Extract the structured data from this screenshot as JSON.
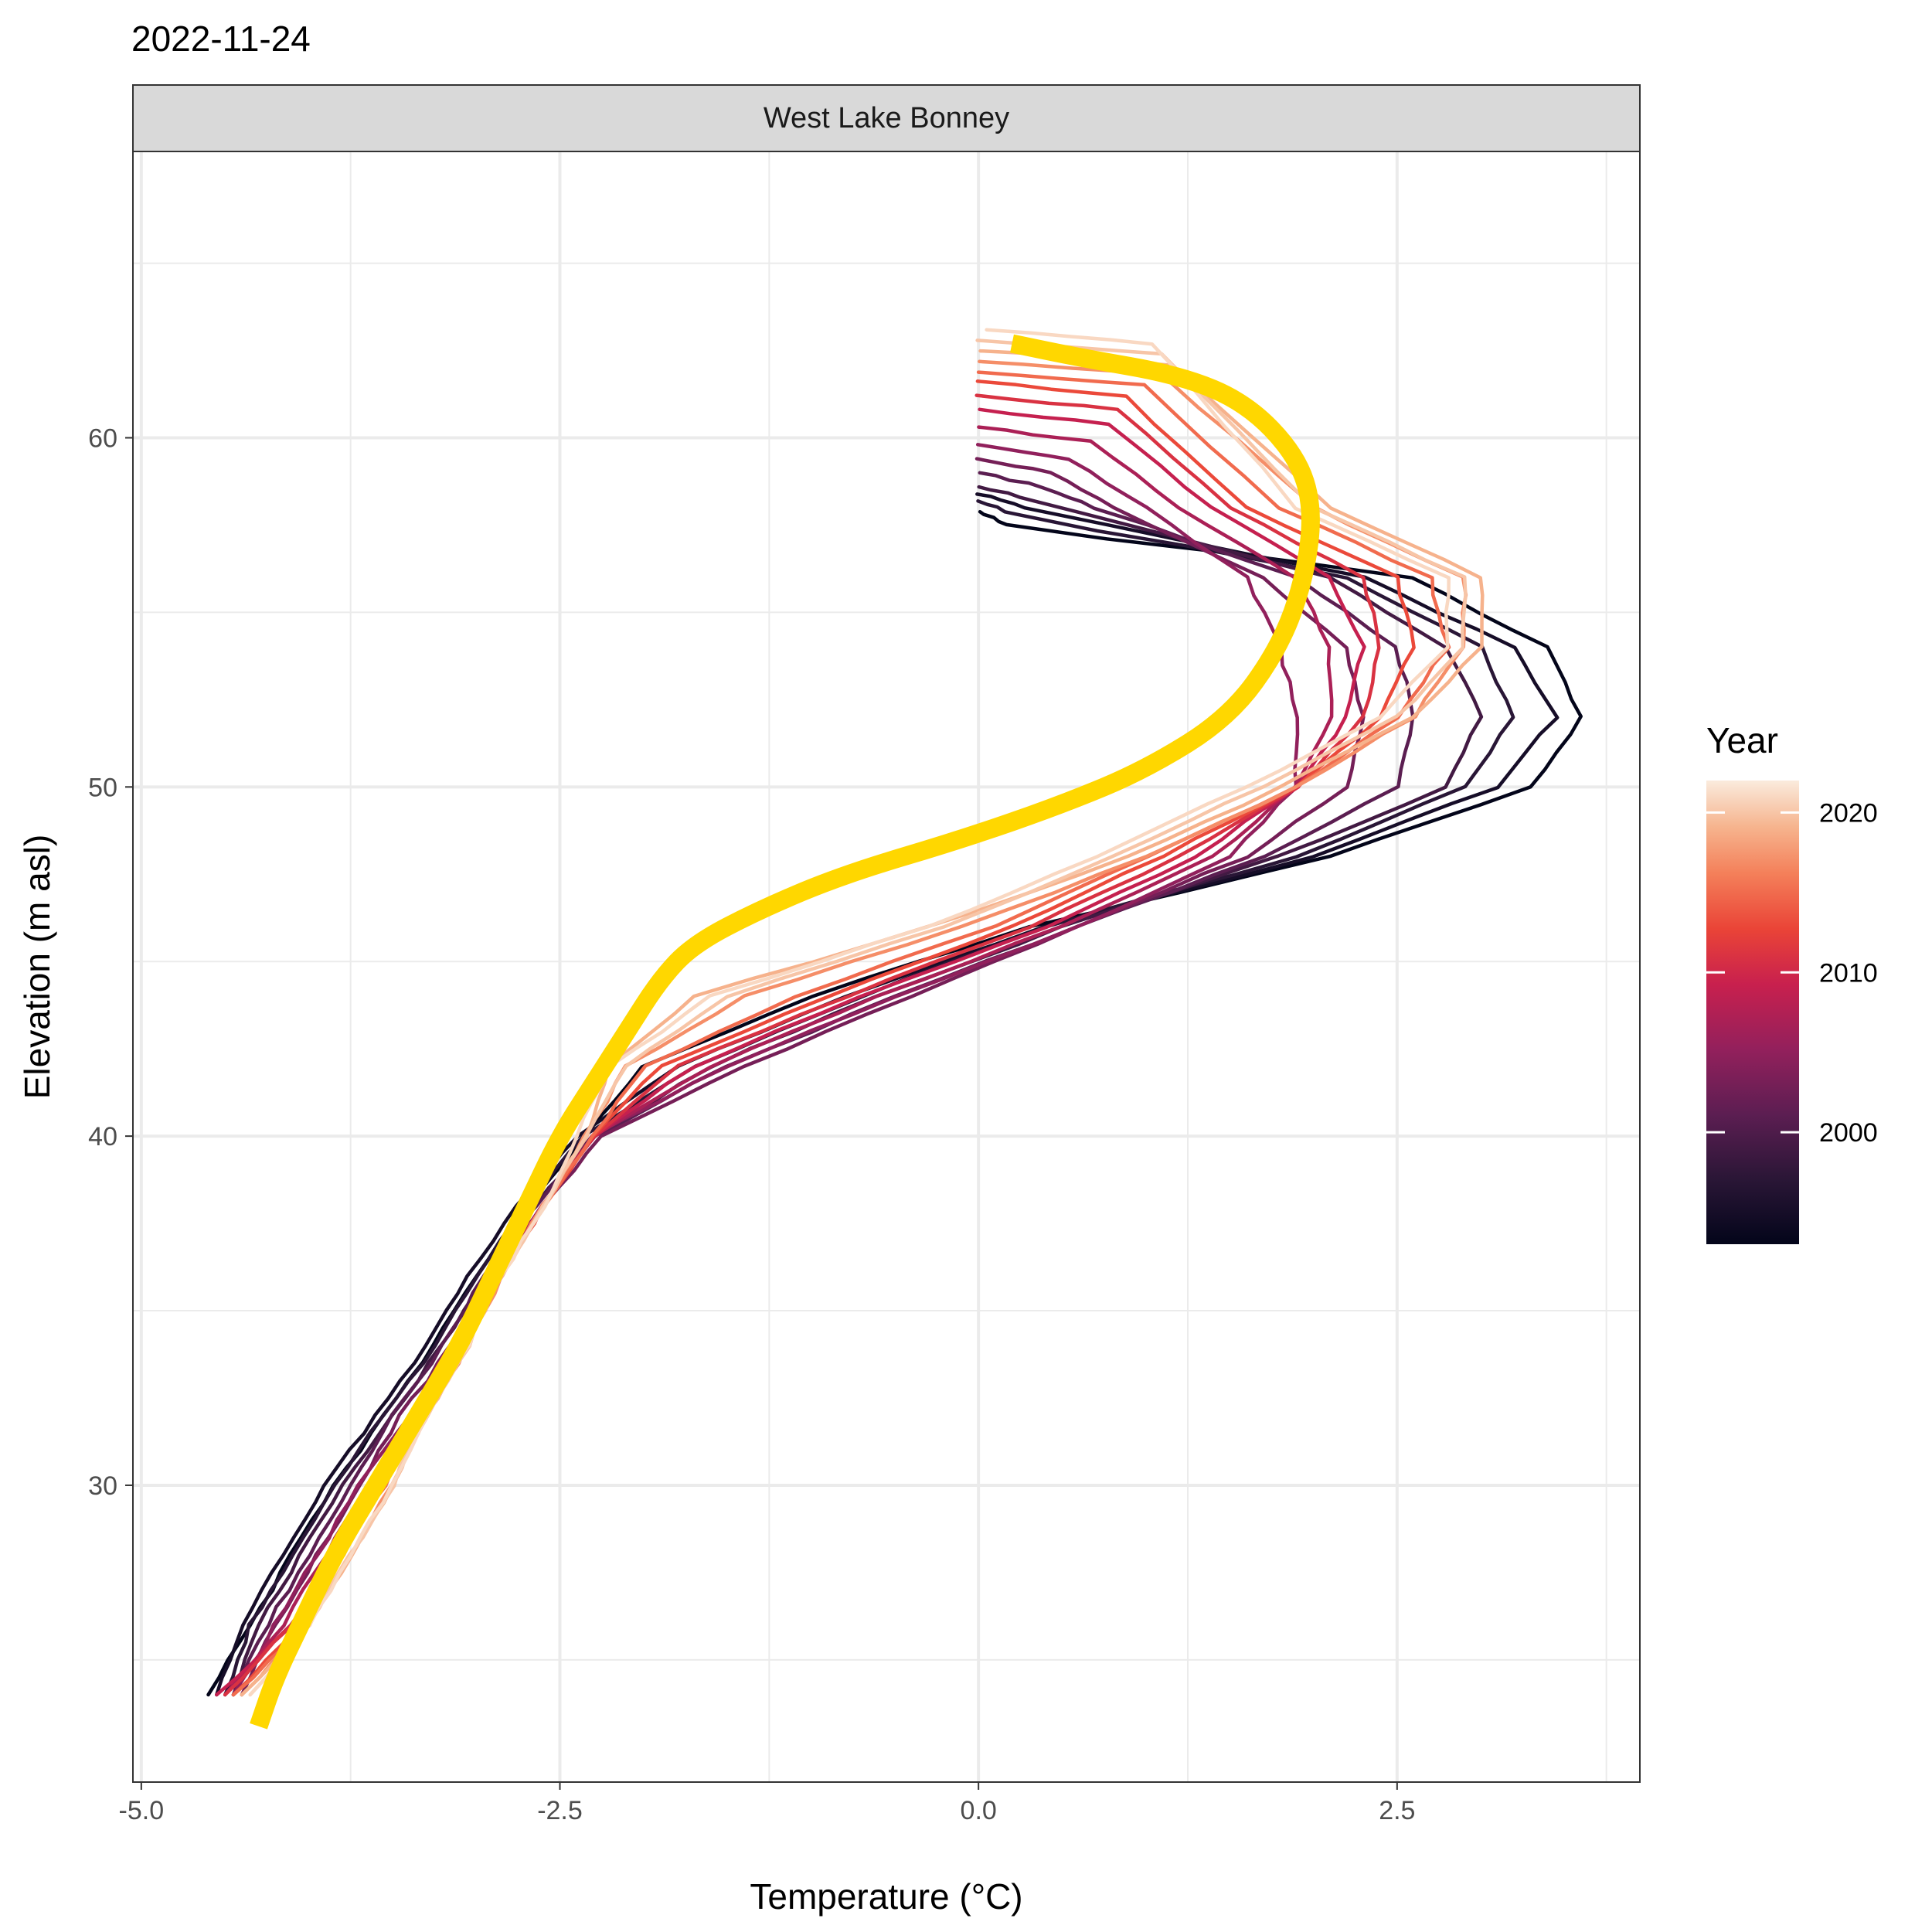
{
  "chart_data": {
    "type": "line",
    "title": "2022-11-24",
    "facet": "West Lake Bonney",
    "xlabel": "Temperature (°C)",
    "ylabel": "Elevation (m asl)",
    "xlim": [
      -5.05,
      3.95
    ],
    "ylim": [
      21.5,
      68.2
    ],
    "x_ticks": [
      -5.0,
      -2.5,
      0.0,
      2.5
    ],
    "x_tick_labels": [
      "-5.0",
      "-2.5",
      "0.0",
      "2.5"
    ],
    "y_ticks": [
      30,
      40,
      50,
      60
    ],
    "y_tick_labels": [
      "30",
      "40",
      "50",
      "60"
    ],
    "grid": true,
    "legend": {
      "title": "Year",
      "position": "right",
      "type": "colorbar",
      "range": [
        1993,
        2022
      ],
      "ticks": [
        2000,
        2010,
        2020
      ],
      "tick_labels": [
        "2000",
        "2010",
        "2020"
      ],
      "colormap": "rocket"
    },
    "highlight": {
      "name": "2022-11-24",
      "color": "#FFD700",
      "y": [
        62.7,
        62.3,
        61.8,
        61.0,
        59.5,
        58.0,
        56.0,
        54.0,
        52.0,
        50.5,
        49.5,
        48.5,
        47.5,
        46.5,
        45.5,
        44.5,
        43.0,
        41.5,
        40.0,
        38.0,
        36.0,
        34.0,
        32.0,
        30.0,
        28.0,
        26.0,
        24.5,
        23.1
      ],
      "values": [
        0.2,
        0.6,
        1.2,
        1.6,
        1.9,
        2.0,
        1.95,
        1.8,
        1.5,
        1.0,
        0.5,
        -0.1,
        -0.8,
        -1.3,
        -1.7,
        -1.9,
        -2.1,
        -2.3,
        -2.5,
        -2.7,
        -2.9,
        -3.1,
        -3.35,
        -3.6,
        -3.85,
        -4.05,
        -4.2,
        -4.3
      ]
    },
    "profile_y": [
      58.0,
      56.0,
      54.0,
      52.0,
      50.0,
      48.0,
      46.0,
      44.0,
      42.0,
      40.0,
      38.0,
      36.0,
      34.0,
      32.0,
      30.0,
      28.0,
      26.0,
      24.0
    ],
    "series": [
      {
        "year": 1993,
        "top_y": 57.9,
        "top_x": 0.0,
        "max_y": 53.0,
        "values": [
          0.3,
          2.6,
          3.4,
          3.6,
          3.3,
          2.1,
          0.3,
          -1.0,
          -2.0,
          -2.35,
          -2.7,
          -3.0,
          -3.25,
          -3.55,
          -3.85,
          -4.1,
          -4.35,
          -4.6
        ]
      },
      {
        "year": 1995,
        "top_y": 58.4,
        "top_x": 0.0,
        "max_y": 53.0,
        "values": [
          0.5,
          2.3,
          3.2,
          3.45,
          3.1,
          2.0,
          0.4,
          -0.8,
          -1.8,
          -2.4,
          -2.75,
          -3.05,
          -3.3,
          -3.6,
          -3.9,
          -4.15,
          -4.4,
          -4.55
        ]
      },
      {
        "year": 1997,
        "top_y": 58.2,
        "top_x": 0.0,
        "max_y": 53.0,
        "values": [
          0.4,
          2.2,
          3.0,
          3.2,
          2.9,
          1.9,
          0.4,
          -0.7,
          -1.7,
          -2.35,
          -2.7,
          -3.0,
          -3.25,
          -3.55,
          -3.85,
          -4.1,
          -4.35,
          -4.5
        ]
      },
      {
        "year": 1999,
        "top_y": 58.6,
        "top_x": 0.0,
        "max_y": 53.0,
        "values": [
          0.6,
          2.1,
          2.8,
          3.0,
          2.8,
          1.8,
          0.5,
          -0.6,
          -1.6,
          -2.3,
          -2.65,
          -2.95,
          -3.2,
          -3.5,
          -3.8,
          -4.05,
          -4.3,
          -4.45
        ]
      },
      {
        "year": 2001,
        "top_y": 59.0,
        "top_x": 0.0,
        "max_y": 53.5,
        "values": [
          0.7,
          1.9,
          2.5,
          2.6,
          2.5,
          1.7,
          0.6,
          -0.5,
          -1.5,
          -2.3,
          -2.65,
          -2.95,
          -3.2,
          -3.5,
          -3.75,
          -4.0,
          -4.25,
          -4.45
        ]
      },
      {
        "year": 2003,
        "top_y": 59.4,
        "top_x": 0.0,
        "max_y": 53.5,
        "values": [
          0.8,
          1.7,
          2.2,
          2.3,
          2.2,
          1.6,
          0.6,
          -0.4,
          -1.4,
          -2.25,
          -2.6,
          -2.9,
          -3.15,
          -3.45,
          -3.7,
          -3.95,
          -4.2,
          -4.4
        ]
      },
      {
        "year": 2005,
        "top_y": 59.8,
        "top_x": 0.0,
        "max_y": 55.0,
        "values": [
          1.0,
          1.6,
          1.8,
          1.9,
          1.9,
          1.5,
          0.6,
          -0.5,
          -1.5,
          -2.3,
          -2.6,
          -2.9,
          -3.15,
          -3.4,
          -3.7,
          -3.95,
          -4.2,
          -4.45
        ]
      },
      {
        "year": 2007,
        "top_y": 60.3,
        "top_x": 0.0,
        "max_y": 55.5,
        "values": [
          1.2,
          1.9,
          2.1,
          2.1,
          1.9,
          1.4,
          0.5,
          -0.6,
          -1.6,
          -2.3,
          -2.6,
          -2.9,
          -3.15,
          -3.4,
          -3.65,
          -3.9,
          -4.15,
          -4.5
        ]
      },
      {
        "year": 2009,
        "top_y": 60.8,
        "top_x": 0.0,
        "max_y": 56.0,
        "values": [
          1.4,
          2.1,
          2.3,
          2.2,
          1.9,
          1.3,
          0.4,
          -0.7,
          -1.7,
          -2.3,
          -2.6,
          -2.85,
          -3.1,
          -3.35,
          -3.6,
          -3.85,
          -4.1,
          -4.55
        ]
      },
      {
        "year": 2011,
        "top_y": 61.2,
        "top_x": 0.0,
        "max_y": 56.0,
        "values": [
          1.5,
          2.3,
          2.4,
          2.3,
          1.9,
          1.2,
          0.3,
          -0.8,
          -1.8,
          -2.3,
          -2.6,
          -2.85,
          -3.1,
          -3.35,
          -3.6,
          -3.85,
          -4.1,
          -4.5
        ]
      },
      {
        "year": 2013,
        "top_y": 61.6,
        "top_x": 0.0,
        "max_y": 56.0,
        "values": [
          1.6,
          2.5,
          2.6,
          2.4,
          1.9,
          1.1,
          0.2,
          -0.9,
          -1.9,
          -2.3,
          -2.6,
          -2.85,
          -3.1,
          -3.35,
          -3.6,
          -3.8,
          -4.05,
          -4.45
        ]
      },
      {
        "year": 2015,
        "top_y": 61.9,
        "top_x": 0.0,
        "max_y": 56.5,
        "values": [
          1.8,
          2.7,
          2.8,
          2.5,
          1.9,
          1.0,
          0.1,
          -1.1,
          -2.0,
          -2.3,
          -2.6,
          -2.85,
          -3.05,
          -3.3,
          -3.55,
          -3.8,
          -4.0,
          -4.45
        ]
      },
      {
        "year": 2017,
        "top_y": 62.2,
        "top_x": 0.0,
        "max_y": 56.5,
        "values": [
          2.0,
          2.9,
          2.9,
          2.6,
          1.9,
          1.0,
          -0.1,
          -1.4,
          -2.1,
          -2.35,
          -2.6,
          -2.85,
          -3.05,
          -3.3,
          -3.5,
          -3.75,
          -4.0,
          -4.4
        ]
      },
      {
        "year": 2019,
        "top_y": 62.5,
        "top_x": 0.0,
        "max_y": 57.0,
        "values": [
          2.1,
          3.0,
          3.0,
          2.6,
          1.8,
          0.9,
          -0.3,
          -1.7,
          -2.2,
          -2.35,
          -2.6,
          -2.85,
          -3.05,
          -3.3,
          -3.5,
          -3.75,
          -4.0,
          -4.4
        ]
      },
      {
        "year": 2020,
        "top_y": 62.8,
        "top_x": 0.0,
        "max_y": 57.0,
        "values": [
          2.0,
          2.9,
          2.9,
          2.5,
          1.7,
          0.8,
          -0.2,
          -1.5,
          -2.1,
          -2.35,
          -2.6,
          -2.85,
          -3.05,
          -3.3,
          -3.5,
          -3.75,
          -4.0,
          -4.35
        ]
      },
      {
        "year": 2021,
        "top_y": 63.1,
        "top_x": 0.05,
        "max_y": 57.0,
        "values": [
          1.9,
          2.8,
          2.8,
          2.4,
          1.6,
          0.7,
          -0.3,
          -1.6,
          -2.2,
          -2.4,
          -2.6,
          -2.85,
          -3.05,
          -3.3,
          -3.5,
          -3.75,
          -4.0,
          -4.35
        ]
      }
    ]
  }
}
